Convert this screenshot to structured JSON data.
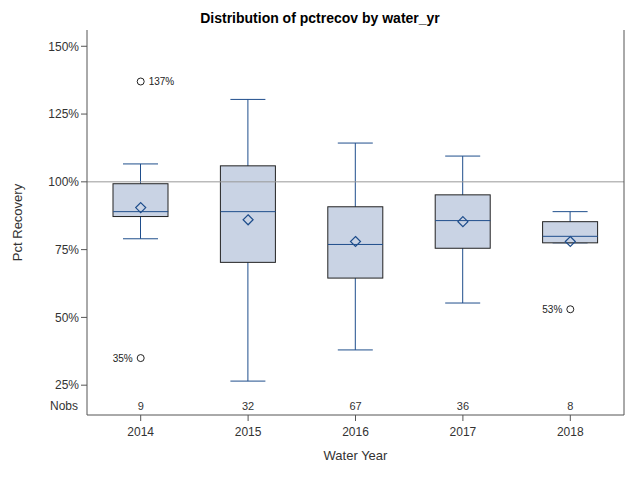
{
  "chart_data": {
    "type": "box",
    "title": "Distribution of pctrecov by water_yr",
    "x_label": "Water Year",
    "y_label": "Pct Recovery",
    "categories": [
      "2014",
      "2015",
      "2016",
      "2017",
      "2018"
    ],
    "min": [
      79,
      26.5,
      38,
      55.3,
      77.5
    ],
    "q1": [
      87.2,
      70.3,
      64.5,
      75.5,
      77.5
    ],
    "median": [
      89,
      89,
      76.9,
      85.7,
      79.9
    ],
    "q3": [
      99.3,
      105.9,
      90.8,
      95.2,
      85.3
    ],
    "max": [
      106.6,
      130.4,
      114.3,
      109.5,
      89
    ],
    "mean": [
      90.5,
      86,
      78,
      85.3,
      78
    ],
    "outliers": [
      [
        {
          "value": 137,
          "label": "137%"
        },
        {
          "value": 35,
          "label": "35%"
        }
      ],
      [],
      [],
      [],
      [
        {
          "value": 53,
          "label": "53%"
        }
      ]
    ],
    "nobs_label": "Nobs",
    "nobs": [
      9,
      32,
      67,
      36,
      8
    ],
    "reference_line": 100,
    "ylim": [
      14,
      156
    ],
    "yticks": [
      {
        "value": 25,
        "label": "25%"
      },
      {
        "value": 50,
        "label": "50%"
      },
      {
        "value": 75,
        "label": "75%"
      },
      {
        "value": 100,
        "label": "100%"
      },
      {
        "value": 125,
        "label": "125%"
      },
      {
        "value": 150,
        "label": "150%"
      }
    ],
    "grid": false,
    "color": "#c9d3e4"
  }
}
